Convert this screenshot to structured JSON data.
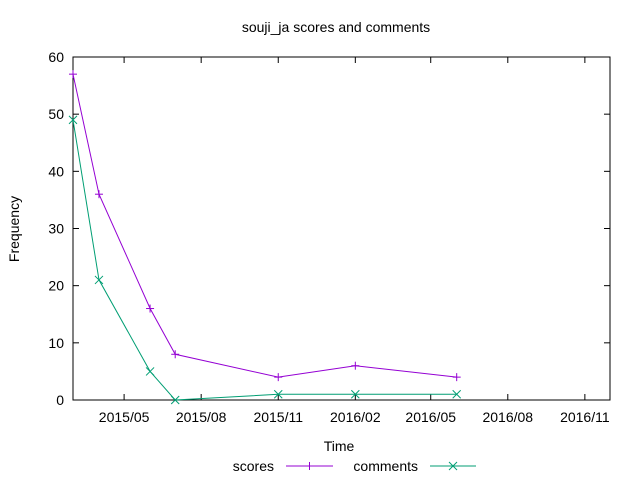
{
  "chart_data": {
    "type": "line",
    "title": "souji_ja scores and comments",
    "xlabel": "Time",
    "ylabel": "Frequency",
    "xlim": [
      "2015-03-01",
      "2016-12-01"
    ],
    "ylim": [
      0,
      60
    ],
    "x_ticks": [
      "2015/05",
      "2015/08",
      "2015/11",
      "2016/02",
      "2016/05",
      "2016/08",
      "2016/11"
    ],
    "y_ticks": [
      "0",
      "10",
      "20",
      "30",
      "40",
      "50",
      "60"
    ],
    "grid": false,
    "legend": "bottom-center",
    "series": [
      {
        "name": "scores",
        "color": "#9400d3",
        "marker": "plus",
        "points": [
          {
            "x": "2015-03-01",
            "y": 57
          },
          {
            "x": "2015-04-01",
            "y": 36
          },
          {
            "x": "2015-06-01",
            "y": 16
          },
          {
            "x": "2015-07-01",
            "y": 8
          },
          {
            "x": "2015-11-01",
            "y": 4
          },
          {
            "x": "2016-02-01",
            "y": 6
          },
          {
            "x": "2016-06-01",
            "y": 4
          }
        ]
      },
      {
        "name": "comments",
        "color": "#009e73",
        "marker": "cross",
        "points": [
          {
            "x": "2015-03-01",
            "y": 49
          },
          {
            "x": "2015-04-01",
            "y": 21
          },
          {
            "x": "2015-06-01",
            "y": 5
          },
          {
            "x": "2015-07-01",
            "y": 0
          },
          {
            "x": "2015-11-01",
            "y": 1
          },
          {
            "x": "2016-02-01",
            "y": 1
          },
          {
            "x": "2016-06-01",
            "y": 1
          }
        ]
      }
    ]
  }
}
